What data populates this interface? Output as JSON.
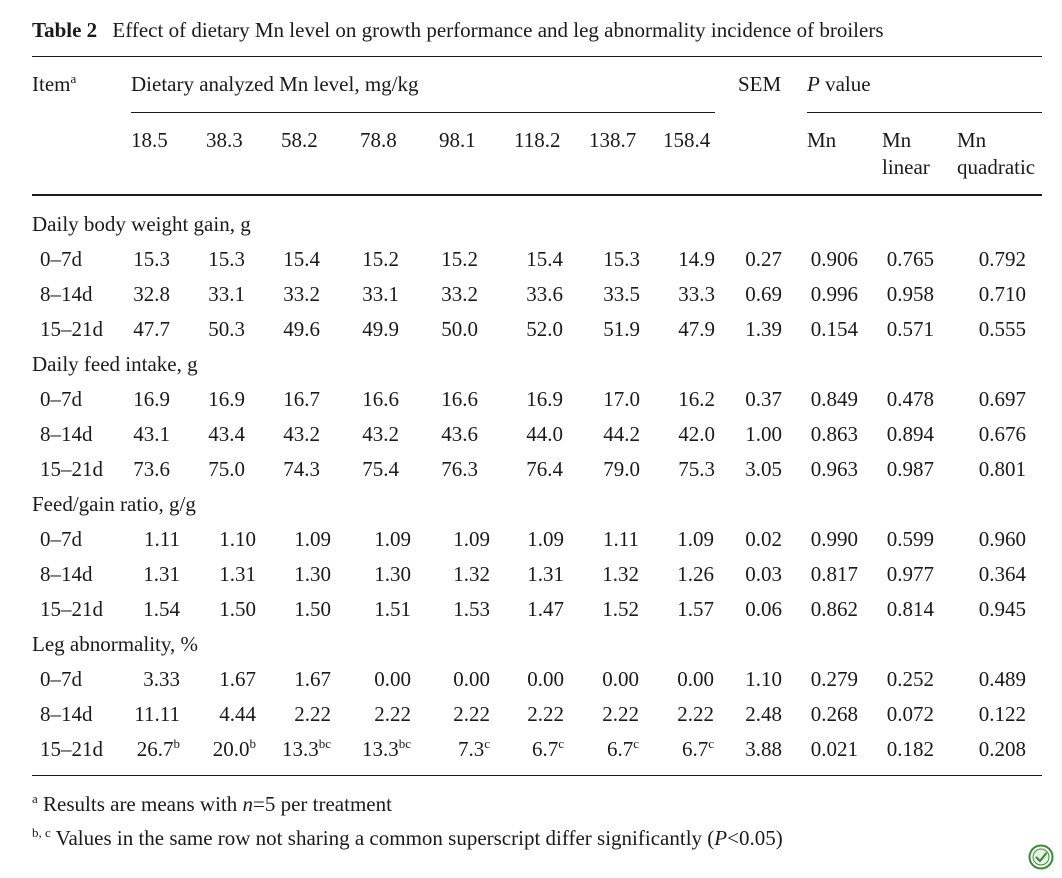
{
  "caption": {
    "label": "Table 2",
    "title": "Effect of dietary Mn level on growth performance and leg abnormality incidence of broilers"
  },
  "header": {
    "item": "Item",
    "item_sup": "a",
    "dietary": "Dietary analyzed Mn level, mg/kg",
    "sem": "SEM",
    "p_italic": "P",
    "p_rest": " value",
    "levels": [
      "18.5",
      "38.3",
      "58.2",
      "78.8",
      "98.1",
      "118.2",
      "138.7",
      "158.4"
    ],
    "p_cols": [
      {
        "l1": "Mn",
        "l2": ""
      },
      {
        "l1": "Mn",
        "l2": "linear"
      },
      {
        "l1": "Mn",
        "l2": "quadratic"
      }
    ]
  },
  "sections": [
    {
      "title": "Daily body weight gain, g",
      "rows": [
        {
          "label": "0–7d",
          "values": [
            "15.3",
            "15.3",
            "15.4",
            "15.2",
            "15.2",
            "15.4",
            "15.3",
            "14.9"
          ],
          "sups": [
            "",
            "",
            "",
            "",
            "",
            "",
            "",
            ""
          ],
          "sem": "0.27",
          "p": [
            "0.906",
            "0.765",
            "0.792"
          ]
        },
        {
          "label": "8–14d",
          "values": [
            "32.8",
            "33.1",
            "33.2",
            "33.1",
            "33.2",
            "33.6",
            "33.5",
            "33.3"
          ],
          "sups": [
            "",
            "",
            "",
            "",
            "",
            "",
            "",
            ""
          ],
          "sem": "0.69",
          "p": [
            "0.996",
            "0.958",
            "0.710"
          ]
        },
        {
          "label": "15–21d",
          "values": [
            "47.7",
            "50.3",
            "49.6",
            "49.9",
            "50.0",
            "52.0",
            "51.9",
            "47.9"
          ],
          "sups": [
            "",
            "",
            "",
            "",
            "",
            "",
            "",
            ""
          ],
          "sem": "1.39",
          "p": [
            "0.154",
            "0.571",
            "0.555"
          ]
        }
      ]
    },
    {
      "title": "Daily feed intake, g",
      "rows": [
        {
          "label": "0–7d",
          "values": [
            "16.9",
            "16.9",
            "16.7",
            "16.6",
            "16.6",
            "16.9",
            "17.0",
            "16.2"
          ],
          "sups": [
            "",
            "",
            "",
            "",
            "",
            "",
            "",
            ""
          ],
          "sem": "0.37",
          "p": [
            "0.849",
            "0.478",
            "0.697"
          ]
        },
        {
          "label": "8–14d",
          "values": [
            "43.1",
            "43.4",
            "43.2",
            "43.2",
            "43.6",
            "44.0",
            "44.2",
            "42.0"
          ],
          "sups": [
            "",
            "",
            "",
            "",
            "",
            "",
            "",
            ""
          ],
          "sem": "1.00",
          "p": [
            "0.863",
            "0.894",
            "0.676"
          ]
        },
        {
          "label": "15–21d",
          "values": [
            "73.6",
            "75.0",
            "74.3",
            "75.4",
            "76.3",
            "76.4",
            "79.0",
            "75.3"
          ],
          "sups": [
            "",
            "",
            "",
            "",
            "",
            "",
            "",
            ""
          ],
          "sem": "3.05",
          "p": [
            "0.963",
            "0.987",
            "0.801"
          ]
        }
      ]
    },
    {
      "title": "Feed/gain ratio, g/g",
      "rows": [
        {
          "label": "0–7d",
          "values": [
            "1.11",
            "1.10",
            "1.09",
            "1.09",
            "1.09",
            "1.09",
            "1.11",
            "1.09"
          ],
          "sups": [
            "",
            "",
            "",
            "",
            "",
            "",
            "",
            ""
          ],
          "sem": "0.02",
          "p": [
            "0.990",
            "0.599",
            "0.960"
          ]
        },
        {
          "label": "8–14d",
          "values": [
            "1.31",
            "1.31",
            "1.30",
            "1.30",
            "1.32",
            "1.31",
            "1.32",
            "1.26"
          ],
          "sups": [
            "",
            "",
            "",
            "",
            "",
            "",
            "",
            ""
          ],
          "sem": "0.03",
          "p": [
            "0.817",
            "0.977",
            "0.364"
          ]
        },
        {
          "label": "15–21d",
          "values": [
            "1.54",
            "1.50",
            "1.50",
            "1.51",
            "1.53",
            "1.47",
            "1.52",
            "1.57"
          ],
          "sups": [
            "",
            "",
            "",
            "",
            "",
            "",
            "",
            ""
          ],
          "sem": "0.06",
          "p": [
            "0.862",
            "0.814",
            "0.945"
          ]
        }
      ]
    },
    {
      "title": "Leg abnormality, %",
      "rows": [
        {
          "label": "0–7d",
          "values": [
            "3.33",
            "1.67",
            "1.67",
            "0.00",
            "0.00",
            "0.00",
            "0.00",
            "0.00"
          ],
          "sups": [
            "",
            "",
            "",
            "",
            "",
            "",
            "",
            ""
          ],
          "sem": "1.10",
          "p": [
            "0.279",
            "0.252",
            "0.489"
          ]
        },
        {
          "label": "8–14d",
          "values": [
            "11.11",
            "4.44",
            "2.22",
            "2.22",
            "2.22",
            "2.22",
            "2.22",
            "2.22"
          ],
          "sups": [
            "",
            "",
            "",
            "",
            "",
            "",
            "",
            ""
          ],
          "sem": "2.48",
          "p": [
            "0.268",
            "0.072",
            "0.122"
          ]
        },
        {
          "label": "15–21d",
          "values": [
            "26.7",
            "20.0",
            "13.3",
            "13.3",
            "7.3",
            "6.7",
            "6.7",
            "6.7"
          ],
          "sups": [
            "b",
            "b",
            "bc",
            "bc",
            "c",
            "c",
            "c",
            "c"
          ],
          "sem": "3.88",
          "p": [
            "0.021",
            "0.182",
            "0.208"
          ]
        }
      ]
    }
  ],
  "footnotes": {
    "a_mark": "a",
    "a_pre": " Results are means with ",
    "a_n": "n",
    "a_post": "=5 per treatment",
    "bc_mark": "b, c",
    "bc_pre": " Values in the same row not sharing a common superscript differ significantly (",
    "bc_p": "P",
    "bc_post": "<0.05)"
  },
  "icons": {
    "corner": "checkmark-badge-icon"
  },
  "colors": {
    "text": "#1a1a1a",
    "badge": "#3a8a3a"
  }
}
